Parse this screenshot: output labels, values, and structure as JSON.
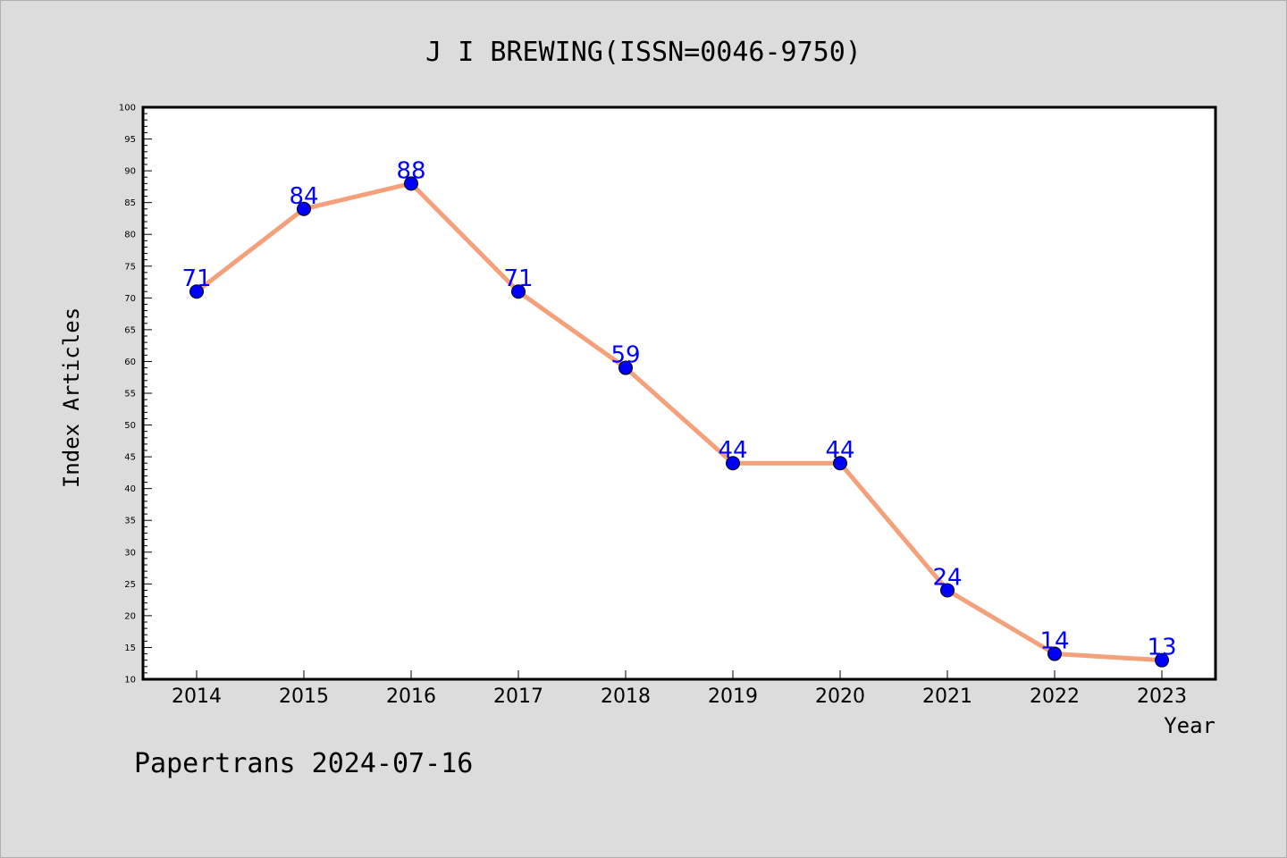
{
  "chart_data": {
    "type": "line",
    "title": "J I BREWING(ISSN=0046-9750)",
    "xlabel": "Year",
    "ylabel": "Index Articles",
    "categories": [
      "2014",
      "2015",
      "2016",
      "2017",
      "2018",
      "2019",
      "2020",
      "2021",
      "2022",
      "2023"
    ],
    "values": [
      71,
      84,
      88,
      71,
      59,
      44,
      44,
      24,
      14,
      13
    ],
    "ylim": [
      10,
      100
    ],
    "ytick_step": 5,
    "grid": false,
    "line_color": "#f4a07a",
    "marker_color": "#0000ff",
    "label_color": "#0000ff"
  },
  "footer": "Papertrans 2024-07-16"
}
